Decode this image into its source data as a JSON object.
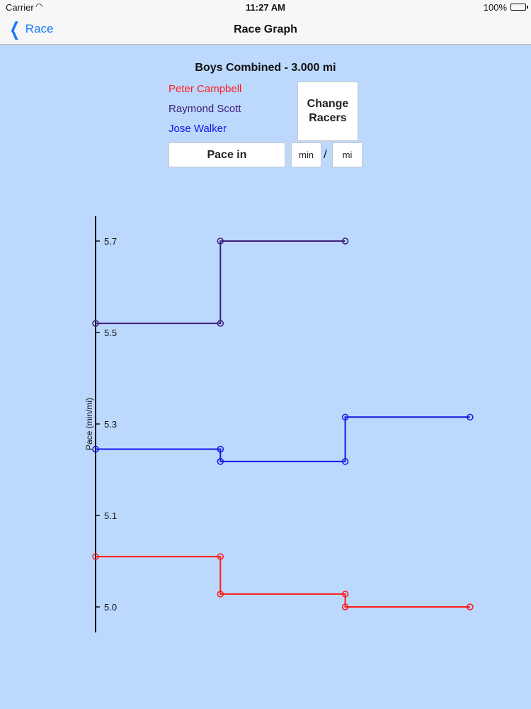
{
  "status_bar": {
    "carrier": "Carrier",
    "time": "11:27 AM",
    "battery": "100%"
  },
  "nav": {
    "back_label": "Race",
    "title": "Race Graph"
  },
  "race": {
    "title": "Boys Combined - 3.000 mi",
    "racers": [
      {
        "name": "Peter Campbell",
        "color": "#ff1a1a"
      },
      {
        "name": "Raymond Scott",
        "color": "#3b1f7a"
      },
      {
        "name": "Jose Walker",
        "color": "#1414e6"
      }
    ]
  },
  "controls": {
    "change_racers": "Change\nRacers",
    "pace_in": "Pace in",
    "unit_time": "min",
    "unit_separator": "/",
    "unit_distance": "mi"
  },
  "chart_data": {
    "type": "line",
    "ylabel": "Pace (min/mi)",
    "y_ticks": [
      5.0,
      5.1,
      5.3,
      5.5,
      5.7
    ],
    "y_tick_labels": [
      "5.0",
      "5.1",
      "5.3",
      "5.5",
      "5.7"
    ],
    "x": [
      0,
      1,
      2,
      3
    ],
    "line_style": "step",
    "series": [
      {
        "name": "Peter Campbell",
        "color": "#ff1a1a",
        "points": [
          [
            0,
            5.055
          ],
          [
            1,
            5.055
          ],
          [
            1,
            5.014
          ],
          [
            2,
            5.014
          ],
          [
            2,
            5.0
          ],
          [
            3,
            5.0
          ]
        ]
      },
      {
        "name": "Raymond Scott",
        "color": "#3b1f7a",
        "points": [
          [
            0,
            5.52
          ],
          [
            1,
            5.52
          ],
          [
            1,
            5.7
          ],
          [
            2,
            5.7
          ]
        ]
      },
      {
        "name": "Jose Walker",
        "color": "#1414e6",
        "points": [
          [
            0,
            5.245
          ],
          [
            1,
            5.245
          ],
          [
            1,
            5.218
          ],
          [
            2,
            5.218
          ],
          [
            2,
            5.315
          ],
          [
            3,
            5.315
          ]
        ]
      }
    ]
  }
}
